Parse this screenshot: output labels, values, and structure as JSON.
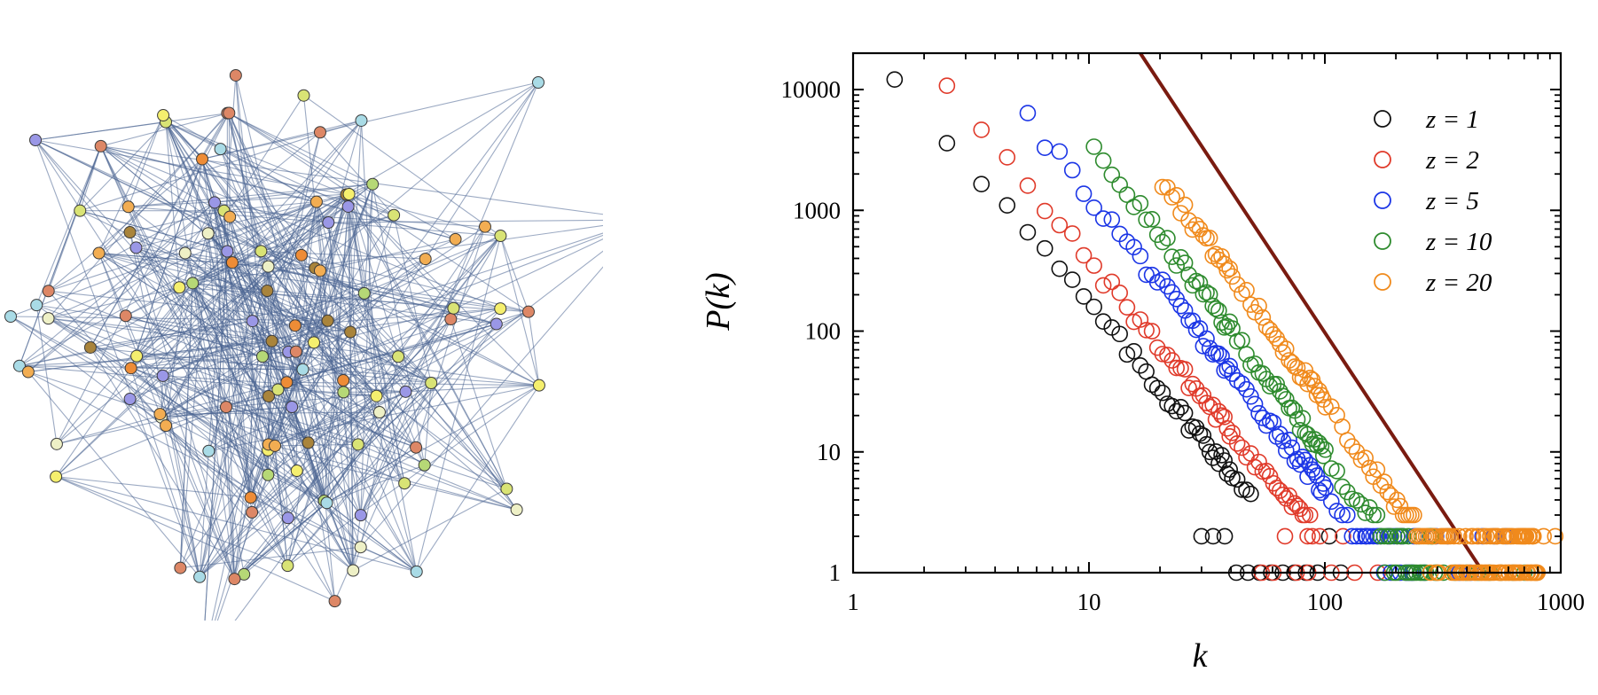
{
  "network": {
    "edge_color": "#4a6592",
    "node_palette": [
      "#f2ad52",
      "#ee8c36",
      "#a9dbe6",
      "#d9e375",
      "#f5ef6e",
      "#a9843b",
      "#9a97e6",
      "#dd8766",
      "#eef0c6",
      "#b6d876"
    ]
  },
  "chart_data": {
    "type": "scatter",
    "xscale": "log",
    "yscale": "log",
    "xlim": [
      1,
      1000
    ],
    "ylim": [
      1,
      20000
    ],
    "xlabel": "k",
    "ylabel": "P(k)",
    "xticks": [
      "1",
      "10",
      "100",
      "1000"
    ],
    "yticks": [
      "1",
      "10",
      "100",
      "1000",
      "10000"
    ],
    "legend_position": "top-right",
    "reference_line": {
      "color": "#7a1b10",
      "x": [
        16.5,
        470
      ],
      "y": [
        20000,
        1
      ]
    },
    "series": [
      {
        "name": "z = 1",
        "color": "#111111",
        "kmin": 1.5,
        "kmax": 50,
        "ymax": 13000,
        "exp": 2.3
      },
      {
        "name": "z = 2",
        "color": "#e03a2a",
        "kmin": 2.5,
        "kmax": 90,
        "ymax": 10000,
        "exp": 2.35
      },
      {
        "name": "z = 5",
        "color": "#1c36e6",
        "kmin": 5.5,
        "kmax": 250,
        "ymax": 5800,
        "exp": 2.45
      },
      {
        "name": "z = 10",
        "color": "#2e8b2e",
        "kmin": 10.5,
        "kmax": 300,
        "ymax": 3300,
        "exp": 2.6
      },
      {
        "name": "z = 20",
        "color": "#f08a1c",
        "kmin": 20.5,
        "kmax": 800,
        "ymax": 1800,
        "exp": 2.7
      }
    ]
  }
}
